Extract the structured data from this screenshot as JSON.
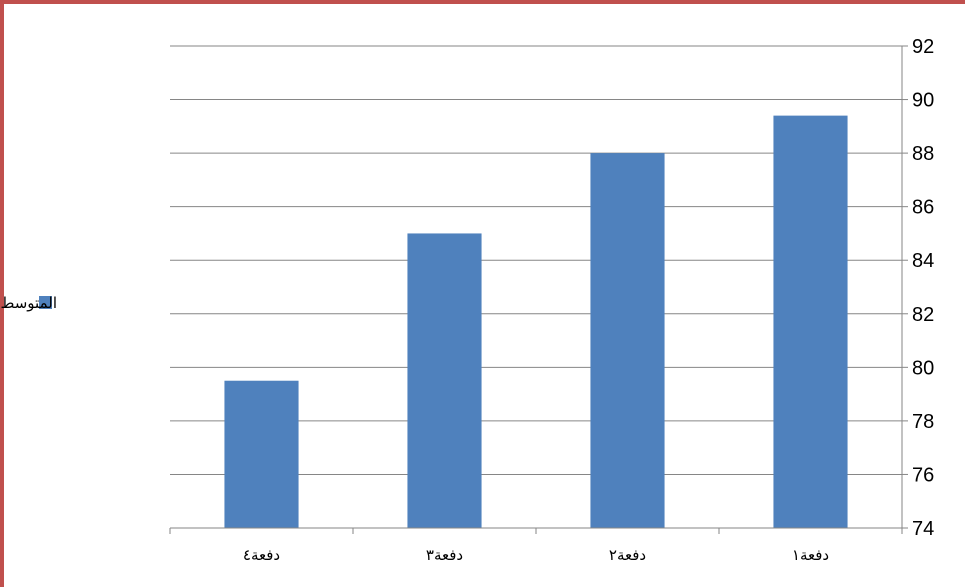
{
  "chart_data": {
    "type": "bar",
    "categories": [
      "دفعة٤",
      "دفعة٣",
      "دفعة٢",
      "دفعة١"
    ],
    "series": [
      {
        "name": "المتوسط",
        "values": [
          79.5,
          85,
          88,
          89.4
        ],
        "color": "#4f81bd"
      }
    ],
    "title": "",
    "xlabel": "",
    "ylabel": "",
    "ylim": [
      74,
      92
    ],
    "y_ticks": [
      74,
      76,
      78,
      80,
      82,
      84,
      86,
      88,
      90,
      92
    ],
    "y_axis_position": "right",
    "grid": true,
    "legend": {
      "position": "left",
      "label": "المتوسط"
    },
    "colors": {
      "bar": "#4f81bd",
      "grid": "#868686",
      "frame_border": "#c0504d"
    }
  }
}
